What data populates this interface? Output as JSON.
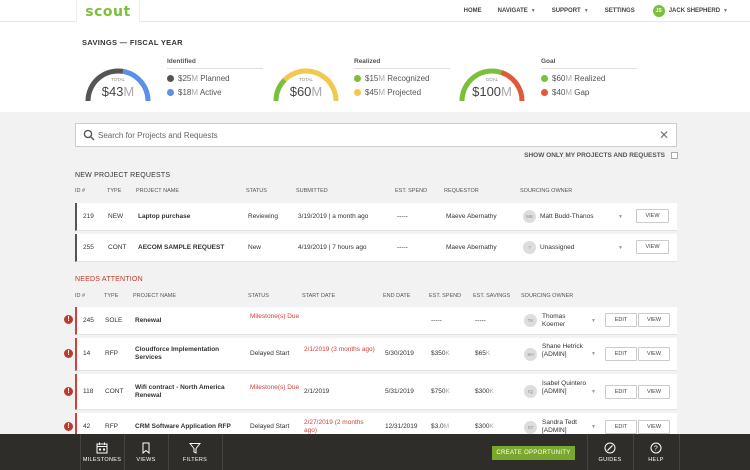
{
  "app": {
    "logo": "scout"
  },
  "nav": {
    "home": "HOME",
    "navigate": "NAVIGATE",
    "support": "SUPPORT",
    "settings": "SETTINGS",
    "user_initials": "JS",
    "user_name": "JACK SHEPHERD"
  },
  "savings": {
    "title": "SAVINGS — FISCAL YEAR",
    "identified": {
      "gauge_label": "TOTAL",
      "gauge_value": "$43",
      "gauge_unit": "M",
      "header": "Identified",
      "items": [
        {
          "value": "$25",
          "unit": "M",
          "label": " Planned",
          "color": "#555555"
        },
        {
          "value": "$18",
          "unit": "M",
          "label": " Active",
          "color": "#5b8fe8"
        }
      ],
      "fill_fraction": 0.58
    },
    "realized": {
      "gauge_label": "TOTAL",
      "gauge_value": "$60",
      "gauge_unit": "M",
      "header": "Realized",
      "items": [
        {
          "value": "$15",
          "unit": "M",
          "label": " Recognized",
          "color": "#7bbf3a"
        },
        {
          "value": "$45",
          "unit": "M",
          "label": " Projected",
          "color": "#f2c94c"
        }
      ],
      "fill_fraction": 0.25
    },
    "goal": {
      "gauge_label": "GOAL",
      "gauge_value": "$100",
      "gauge_unit": "M",
      "header": "Goal",
      "items": [
        {
          "value": "$60",
          "unit": "M",
          "label": " Realized",
          "color": "#7bbf3a"
        },
        {
          "value": "$40",
          "unit": "M",
          "label": " Gap",
          "color": "#e05a3a"
        }
      ],
      "fill_fraction": 0.6
    }
  },
  "search": {
    "placeholder": "Search for Projects and Requests"
  },
  "filter": {
    "only_mine": "SHOW ONLY MY PROJECTS AND REQUESTS"
  },
  "new_requests": {
    "title": "NEW PROJECT REQUESTS",
    "headers": {
      "id": "ID #",
      "type": "TYPE",
      "name": "PROJECT NAME",
      "status": "STATUS",
      "submitted": "SUBMITTED",
      "spend": "EST. SPEND",
      "requestor": "REQUESTOR",
      "owner": "SOURCING OWNER"
    },
    "rows": [
      {
        "id": "219",
        "type": "NEW",
        "name": "Laptop purchase",
        "status": "Reviewing",
        "submitted": "3/19/2019 | a month ago",
        "spend": "-----",
        "requestor": "Maeve Abernathy",
        "owner_initials": "MB",
        "owner": "Matt Budd-Thanos",
        "view": "VIEW"
      },
      {
        "id": "255",
        "type": "CONT",
        "name": "AECOM SAMPLE REQUEST",
        "status": "New",
        "submitted": "4/19/2019 | 7 hours ago",
        "spend": "-----",
        "requestor": "Maeve Abernathy",
        "owner_initials": "?",
        "owner": "Unassigned",
        "view": "VIEW"
      }
    ]
  },
  "needs_attention": {
    "title": "NEEDS ATTENTION",
    "headers": {
      "id": "ID #",
      "type": "TYPE",
      "name": "PROJECT NAME",
      "status": "STATUS",
      "start": "START DATE",
      "end": "END DATE",
      "spend": "EST. SPEND",
      "savings": "EST. SAVINGS",
      "owner": "SOURCING OWNER"
    },
    "rows": [
      {
        "id": "245",
        "type": "SOLE",
        "name": "Renewal",
        "status": "Milestone(s) Due",
        "start": "",
        "end": "",
        "spend": "-----",
        "spend_unit": "",
        "savings": "-----",
        "savings_unit": "",
        "owner_initials": "TK",
        "owner": "Thomas Koerner",
        "edit": "EDIT",
        "view": "VIEW"
      },
      {
        "id": "14",
        "type": "RFP",
        "name": "Cloudforce Implementation Services",
        "status": "Delayed Start",
        "start": "2/1/2019 (3 months ago)",
        "end": "5/30/2019",
        "spend": "$350",
        "spend_unit": "K",
        "savings": "$65",
        "savings_unit": "K",
        "owner_initials": "SH",
        "owner": "Shane Hetrick [ADMIN]",
        "edit": "EDIT",
        "view": "VIEW"
      },
      {
        "id": "118",
        "type": "CONT",
        "name": "Wifi contract - North America Renewal",
        "status": "Milestone(s) Due",
        "start": "2/1/2019",
        "end": "5/31/2019",
        "spend": "$750",
        "spend_unit": "K",
        "savings": "$300",
        "savings_unit": "K",
        "owner_initials": "IQ",
        "owner": "Isabel Quintero [ADMIN]",
        "edit": "EDIT",
        "view": "VIEW"
      },
      {
        "id": "42",
        "type": "RFP",
        "name": "CRM Software Application RFP",
        "status": "Delayed Start",
        "start": "2/27/2019 (2 months ago)",
        "end": "12/31/2019",
        "spend": "$3.0",
        "spend_unit": "M",
        "savings": "$300",
        "savings_unit": "K",
        "owner_initials": "ST",
        "owner": "Sandra Tedt [ADMIN]",
        "edit": "EDIT",
        "view": "VIEW"
      }
    ]
  },
  "toolbar": {
    "milestones": "MILESTONES",
    "views": "VIEWS",
    "filters": "FILTERS",
    "create": "CREATE OPPORTUNITY",
    "guides": "GUIDES",
    "help": "HELP"
  }
}
